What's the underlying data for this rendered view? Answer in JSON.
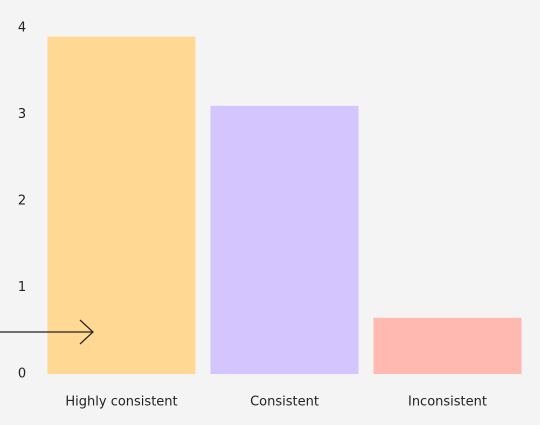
{
  "chart_data": {
    "type": "bar",
    "categories": [
      "Highly consistent",
      "Consistent",
      "Inconsistent"
    ],
    "values": [
      3.9,
      3.1,
      0.65
    ],
    "colors": [
      "#ffd994",
      "#d5c5ff",
      "#ffb9b1"
    ],
    "ylim": [
      0,
      4
    ],
    "yticks": [
      0,
      1,
      2,
      3,
      4
    ],
    "grid": false
  }
}
